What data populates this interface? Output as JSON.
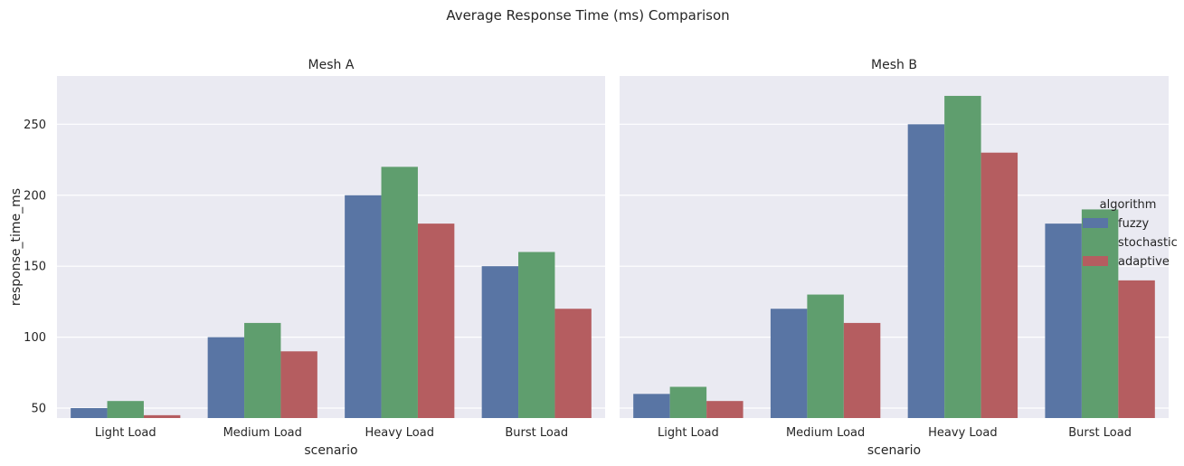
{
  "chart_data": {
    "type": "bar",
    "title": "Average Response Time (ms) Comparison",
    "xlabel": "scenario",
    "ylabel": "response_time_ms",
    "ylim": [
      43,
      284
    ],
    "yticks": [
      50,
      100,
      150,
      200,
      250
    ],
    "grid": true,
    "categories": [
      "Light Load",
      "Medium Load",
      "Heavy Load",
      "Burst Load"
    ],
    "legend": {
      "title": "algorithm",
      "placement": "center-right",
      "entries": [
        "fuzzy",
        "stochastic",
        "adaptive"
      ]
    },
    "colors": {
      "fuzzy": "#5975a4",
      "stochastic": "#5f9e6e",
      "adaptive": "#b55d60"
    },
    "panels": [
      {
        "title": "Mesh A",
        "series": [
          {
            "name": "fuzzy",
            "values": [
              50,
              100,
              200,
              150
            ]
          },
          {
            "name": "stochastic",
            "values": [
              55,
              110,
              220,
              160
            ]
          },
          {
            "name": "adaptive",
            "values": [
              45,
              90,
              180,
              120
            ]
          }
        ]
      },
      {
        "title": "Mesh B",
        "series": [
          {
            "name": "fuzzy",
            "values": [
              60,
              120,
              250,
              180
            ]
          },
          {
            "name": "stochastic",
            "values": [
              65,
              130,
              270,
              190
            ]
          },
          {
            "name": "adaptive",
            "values": [
              55,
              110,
              230,
              140
            ]
          }
        ]
      }
    ]
  }
}
